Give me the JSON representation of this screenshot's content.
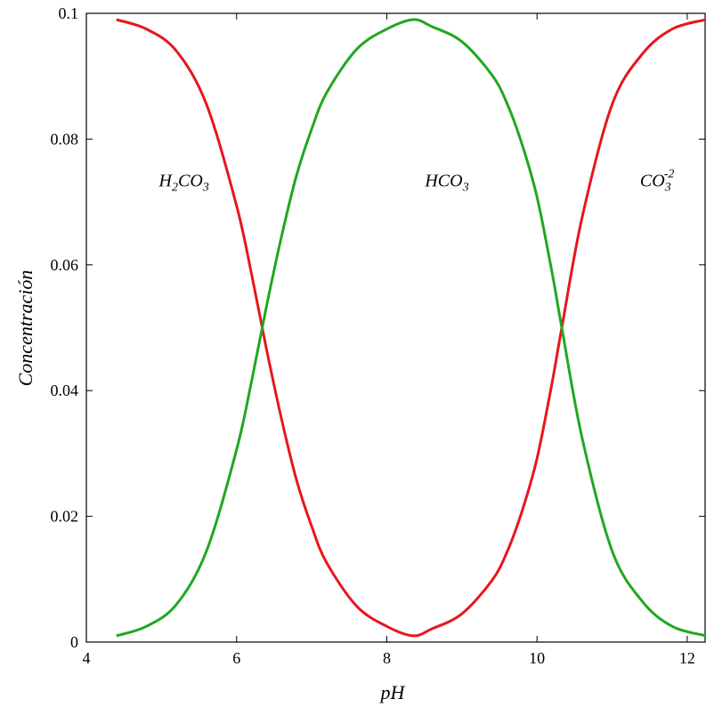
{
  "chart_data": {
    "type": "line",
    "title": "",
    "xlabel": "pH",
    "ylabel": "Concentración",
    "xlim": [
      4,
      12.25
    ],
    "ylim": [
      0,
      0.1
    ],
    "x_ticks": [
      "4",
      "6",
      "8",
      "10",
      "12"
    ],
    "y_ticks": [
      "0",
      "0.02",
      "0.04",
      "0.06",
      "0.08",
      "0.1"
    ],
    "grid": false,
    "annotations": [
      {
        "text": "H2CO3",
        "parts": [
          "H",
          "2",
          "CO",
          "3"
        ],
        "x": 5.3,
        "y": 0.0725
      },
      {
        "text": "HCO3",
        "parts": [
          "HCO",
          "3"
        ],
        "x": 8.8,
        "y": 0.0725
      },
      {
        "text": "CO3-2",
        "parts": [
          "CO",
          "3",
          "-2"
        ],
        "x": 11.6,
        "y": 0.0725
      }
    ],
    "series": [
      {
        "color": "#e8161c",
        "x": [
          4.4,
          4.8,
          5.2,
          5.6,
          6.0,
          6.2,
          6.4,
          6.6,
          6.8,
          7.0,
          7.2,
          7.6,
          8.0,
          8.35,
          8.6,
          9.0,
          9.4,
          9.6,
          9.8,
          10.0,
          10.2,
          10.33,
          10.6,
          11.0,
          11.4,
          11.8,
          12.25
        ],
        "y": [
          0.099,
          0.0975,
          0.094,
          0.0855,
          0.0694,
          0.0585,
          0.0465,
          0.0354,
          0.0257,
          0.0184,
          0.0126,
          0.0057,
          0.0025,
          0.001,
          0.0021,
          0.0045,
          0.0098,
          0.0143,
          0.0208,
          0.0292,
          0.0412,
          0.05,
          0.0675,
          0.0855,
          0.0935,
          0.0975,
          0.099
        ]
      },
      {
        "color": "#1fa81f",
        "x": [
          4.4,
          4.8,
          5.2,
          5.6,
          6.0,
          6.2,
          6.4,
          6.6,
          6.8,
          7.0,
          7.2,
          7.6,
          8.0,
          8.35,
          8.6,
          9.0,
          9.4,
          9.6,
          9.8,
          10.0,
          10.2,
          10.33,
          10.6,
          11.0,
          11.4,
          11.8,
          12.25
        ],
        "y": [
          0.001,
          0.0025,
          0.006,
          0.0145,
          0.0306,
          0.0415,
          0.0535,
          0.0646,
          0.0743,
          0.0816,
          0.0874,
          0.0943,
          0.0975,
          0.099,
          0.0979,
          0.0955,
          0.0902,
          0.0857,
          0.0792,
          0.0708,
          0.0588,
          0.05,
          0.0325,
          0.0145,
          0.0065,
          0.0025,
          0.001
        ]
      }
    ]
  }
}
